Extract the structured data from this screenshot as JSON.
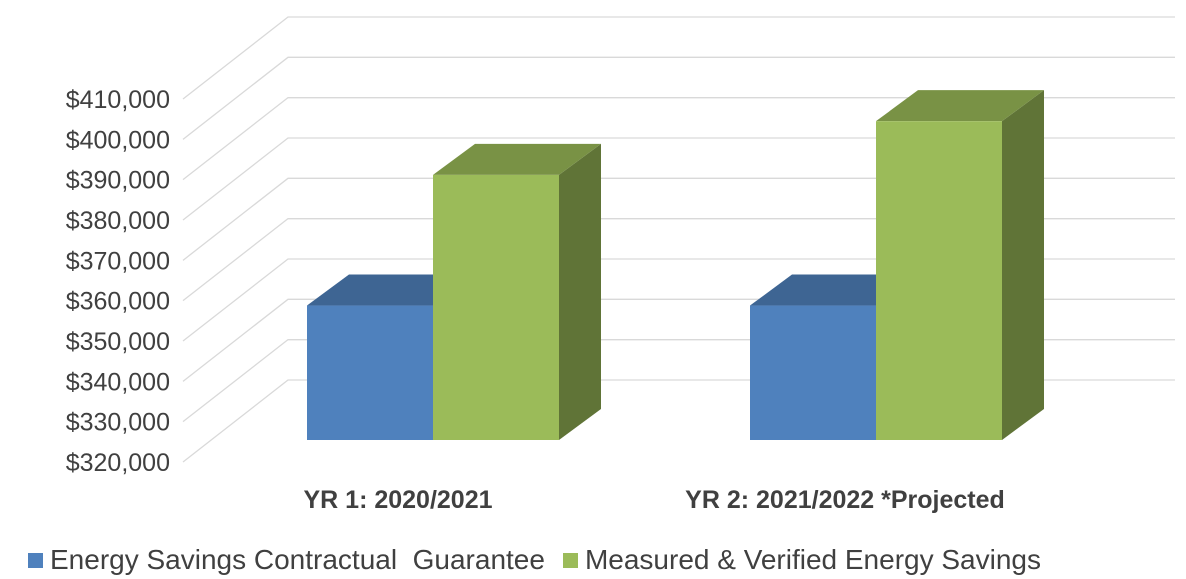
{
  "chart_data": {
    "type": "bar",
    "title": "",
    "xlabel": "",
    "ylabel": "",
    "categories": [
      "YR 1: 2020/2021",
      "YR 2: 2021/2022 *Projected"
    ],
    "series": [
      {
        "name": "Energy Savings Contractual  Guarantee",
        "values": [
          355000,
          355000
        ],
        "color": "#4F81BD"
      },
      {
        "name": "Measured & Verified Energy Savings",
        "values": [
          389000,
          403000
        ],
        "color": "#9BBB59"
      }
    ],
    "ylim": [
      320000,
      410000
    ],
    "y_ticks": [
      {
        "value": 410000,
        "label": "$410,000"
      },
      {
        "value": 400000,
        "label": "$400,000"
      },
      {
        "value": 390000,
        "label": "$390,000"
      },
      {
        "value": 380000,
        "label": "$380,000"
      },
      {
        "value": 370000,
        "label": "$370,000"
      },
      {
        "value": 360000,
        "label": "$360,000"
      },
      {
        "value": 350000,
        "label": "$350,000"
      },
      {
        "value": 340000,
        "label": "$340,000"
      },
      {
        "value": 330000,
        "label": "$330,000"
      },
      {
        "value": 320000,
        "label": "$320,000"
      }
    ],
    "grid": true,
    "style": "3d-clustered-column",
    "legend_position": "bottom"
  }
}
